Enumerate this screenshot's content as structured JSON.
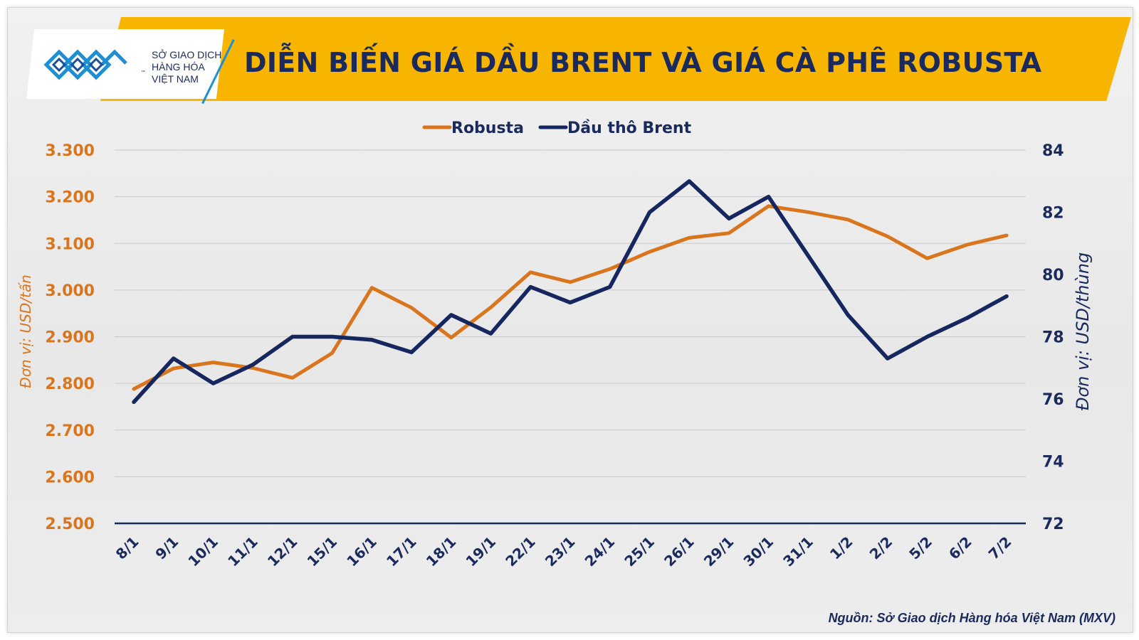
{
  "header": {
    "title": "DIỄN BIẾN GIÁ DẦU BRENT VÀ GIÁ CÀ PHÊ ROBUSTA",
    "logo": {
      "line1": "SỞ GIAO DỊCH",
      "line2": "HÀNG HÓA",
      "line3": "VIỆT NAM",
      "tm": "™",
      "icon": "mxv-logo-icon"
    }
  },
  "source": "Nguồn: Sở Giao dịch Hàng hóa Việt Nam (MXV)",
  "colors": {
    "banner": "#f7b500",
    "robusta": "#d9761d",
    "brent": "#16265e",
    "title": "#1b2a5c"
  },
  "chart_data": {
    "type": "line",
    "title": "DIỄN BIẾN GIÁ DẦU BRENT VÀ GIÁ CÀ PHÊ ROBUSTA",
    "categories": [
      "8/1",
      "9/1",
      "10/1",
      "11/1",
      "12/1",
      "15/1",
      "16/1",
      "17/1",
      "18/1",
      "19/1",
      "22/1",
      "23/1",
      "24/1",
      "25/1",
      "26/1",
      "29/1",
      "30/1",
      "31/1",
      "1/2",
      "2/2",
      "5/2",
      "6/2",
      "7/2"
    ],
    "left_axis": {
      "label": "Đơn vị: USD/tấn",
      "ylim": [
        2500,
        3300
      ],
      "ticks": [
        "3.300",
        "3.200",
        "3.100",
        "3.000",
        "2.900",
        "2.800",
        "2.700",
        "2.600",
        "2.500"
      ],
      "tick_values": [
        3300,
        3200,
        3100,
        3000,
        2900,
        2800,
        2700,
        2600,
        2500
      ]
    },
    "right_axis": {
      "label": "Đơn vị: USD/thùng",
      "ylim": [
        72,
        84
      ],
      "ticks": [
        "84",
        "82",
        "80",
        "78",
        "76",
        "74",
        "72"
      ],
      "tick_values": [
        84,
        82,
        80,
        78,
        76,
        74,
        72
      ]
    },
    "series": [
      {
        "name": "Robusta",
        "axis": "left",
        "color": "#d9761d",
        "values": [
          2788,
          2832,
          2845,
          2833,
          2812,
          2865,
          3005,
          2962,
          2898,
          2963,
          3038,
          3017,
          3045,
          3082,
          3112,
          3122,
          3180,
          3167,
          3151,
          3115,
          3068,
          3097,
          3117
        ]
      },
      {
        "name": "Dầu thô Brent",
        "axis": "right",
        "color": "#16265e",
        "values": [
          75.9,
          77.3,
          76.5,
          77.1,
          78.0,
          78.0,
          77.9,
          77.5,
          78.7,
          78.1,
          79.6,
          79.1,
          79.6,
          82.0,
          83.0,
          81.8,
          82.5,
          80.6,
          78.7,
          77.3,
          78.0,
          78.6,
          79.3
        ]
      }
    ],
    "legend": {
      "position": "top-center",
      "items": [
        "Robusta",
        "Dầu thô Brent"
      ]
    },
    "grid": true
  }
}
